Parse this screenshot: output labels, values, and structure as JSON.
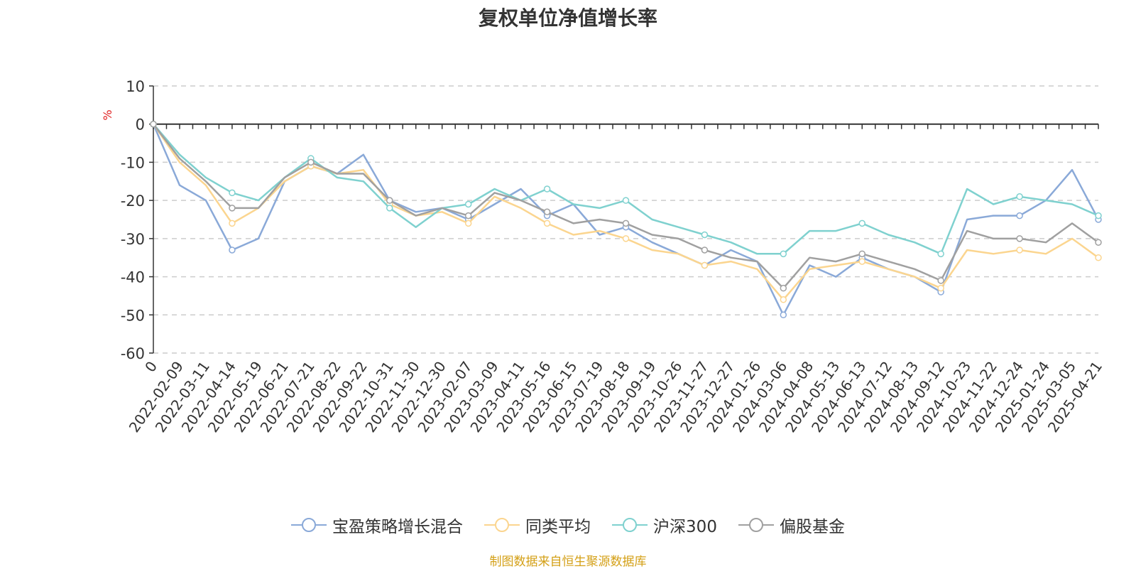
{
  "chart_data": {
    "type": "line",
    "title": "复权单位净值增长率",
    "ylabel": "%",
    "ylim": [
      -60,
      10
    ],
    "yticks": [
      10,
      0,
      -10,
      -20,
      -30,
      -40,
      -50,
      -60
    ],
    "x_tick_labels": [
      "0",
      "2022-02-09",
      "2022-03-11",
      "2022-04-14",
      "2022-05-19",
      "2022-06-21",
      "2022-07-21",
      "2022-08-22",
      "2022-09-22",
      "2022-10-31",
      "2022-11-30",
      "2022-12-30",
      "2023-02-07",
      "2023-03-09",
      "2023-04-11",
      "2023-05-16",
      "2023-06-15",
      "2023-07-19",
      "2023-08-18",
      "2023-09-19",
      "2023-10-26",
      "2023-11-27",
      "2023-12-27",
      "2024-01-26",
      "2024-03-06",
      "2024-04-08",
      "2024-05-13",
      "2024-06-13",
      "2024-07-12",
      "2024-08-13",
      "2024-09-12",
      "2024-10-23",
      "2024-11-22",
      "2024-12-24",
      "2025-01-24",
      "2025-03-05",
      "2025-04-21"
    ],
    "grid": true,
    "legend_position": "bottom",
    "series": [
      {
        "name": "宝盈策略增长混合",
        "color": "#8aa9d8",
        "values": [
          0,
          -16,
          -20,
          -33,
          -30,
          -15,
          -11,
          -13,
          -8,
          -20,
          -23,
          -22,
          -25,
          -21,
          -17,
          -24,
          -21,
          -29,
          -27,
          -31,
          -34,
          -37,
          -33,
          -36,
          -50,
          -37,
          -40,
          -35,
          -38,
          -40,
          -44,
          -25,
          -24,
          -24,
          -20,
          -12,
          -25
        ]
      },
      {
        "name": "同类平均",
        "color": "#fbd58f",
        "values": [
          0,
          -10,
          -16,
          -26,
          -22,
          -15,
          -11,
          -13,
          -12,
          -21,
          -24,
          -23,
          -26,
          -19,
          -22,
          -26,
          -29,
          -28,
          -30,
          -33,
          -34,
          -37,
          -36,
          -38,
          -46,
          -38,
          -37,
          -36,
          -38,
          -40,
          -43,
          -33,
          -34,
          -33,
          -34,
          -30,
          -35
        ]
      },
      {
        "name": "沪深300",
        "color": "#7fd1cf",
        "values": [
          0,
          -8,
          -14,
          -18,
          -20,
          -14,
          -9,
          -14,
          -15,
          -22,
          -27,
          -22,
          -21,
          -17,
          -20,
          -17,
          -21,
          -22,
          -20,
          -25,
          -27,
          -29,
          -31,
          -34,
          -34,
          -28,
          -28,
          -26,
          -29,
          -31,
          -34,
          -17,
          -21,
          -19,
          -20,
          -21,
          -24
        ]
      },
      {
        "name": "偏股基金",
        "color": "#a0a0a0",
        "values": [
          0,
          -9,
          -15,
          -22,
          -22,
          -14,
          -10,
          -13,
          -13,
          -20,
          -24,
          -22,
          -24,
          -18,
          -20,
          -23,
          -26,
          -25,
          -26,
          -29,
          -30,
          -33,
          -35,
          -36,
          -43,
          -35,
          -36,
          -34,
          -36,
          -38,
          -41,
          -28,
          -30,
          -30,
          -31,
          -26,
          -31
        ]
      }
    ]
  },
  "legend": {
    "items": [
      "宝盈策略增长混合",
      "同类平均",
      "沪深300",
      "偏股基金"
    ]
  },
  "source_text": "制图数据来自恒生聚源数据库"
}
